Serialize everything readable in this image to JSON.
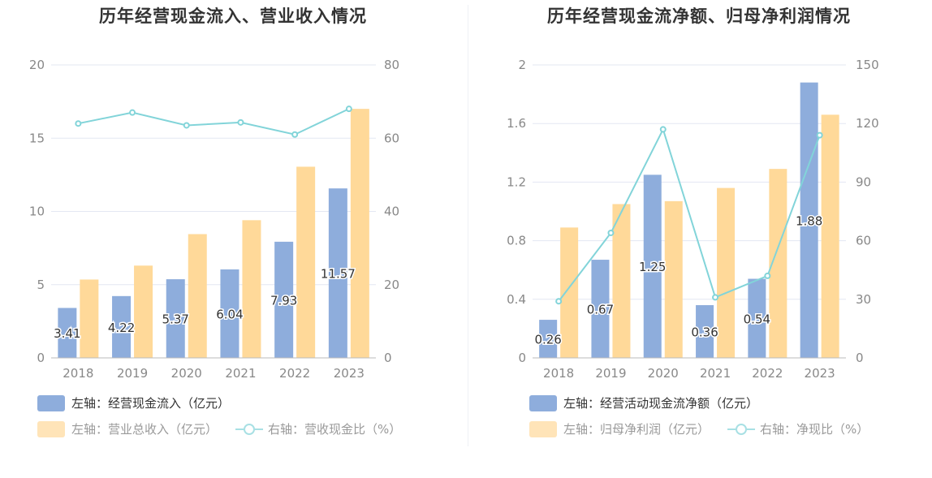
{
  "colors": {
    "bar_primary": "#8eaddc",
    "bar_secondary": "#ffd999",
    "line": "#82d4d9",
    "grid": "#e3e7f2",
    "axis": "#bbbbbb"
  },
  "chart_data": [
    {
      "type": "bar",
      "title": "历年经营现金流入、营业收入情况",
      "categories": [
        "2018",
        "2019",
        "2020",
        "2021",
        "2022",
        "2023"
      ],
      "ylim_left": [
        0,
        20
      ],
      "yticks_left": [
        "0",
        "5",
        "10",
        "15",
        "20"
      ],
      "ylim_right": [
        0,
        80
      ],
      "yticks_right": [
        "0",
        "20",
        "40",
        "60",
        "80"
      ],
      "series": [
        {
          "name": "左轴：经营现金流入（亿元）",
          "axis": "left",
          "kind": "bar",
          "values": [
            3.41,
            4.22,
            5.37,
            6.04,
            7.93,
            11.57
          ],
          "labels": [
            "3.41",
            "4.22",
            "5.37",
            "6.04",
            "7.93",
            "11.57"
          ]
        },
        {
          "name": "左轴：营业总收入（亿元）",
          "axis": "left",
          "kind": "bar",
          "values": [
            5.35,
            6.3,
            8.45,
            9.4,
            13.05,
            17.0
          ]
        },
        {
          "name": "右轴：营收现金比（%）",
          "axis": "right",
          "kind": "line",
          "values": [
            64.0,
            67.0,
            63.5,
            64.3,
            61.0,
            68.0
          ]
        }
      ],
      "grid": true,
      "legend_position": "bottom"
    },
    {
      "type": "bar",
      "title": "历年经营现金流净额、归母净利润情况",
      "categories": [
        "2018",
        "2019",
        "2020",
        "2021",
        "2022",
        "2023"
      ],
      "ylim_left": [
        0,
        2
      ],
      "yticks_left": [
        "0",
        "0.4",
        "0.8",
        "1.2",
        "1.6",
        "2"
      ],
      "ylim_right": [
        0,
        150
      ],
      "yticks_right": [
        "0",
        "30",
        "60",
        "90",
        "120",
        "150"
      ],
      "series": [
        {
          "name": "左轴：经营活动现金流净额（亿元）",
          "axis": "left",
          "kind": "bar",
          "values": [
            0.26,
            0.67,
            1.25,
            0.36,
            0.54,
            1.88
          ],
          "labels": [
            "0.26",
            "0.67",
            "1.25",
            "0.36",
            "0.54",
            "1.88"
          ]
        },
        {
          "name": "左轴：归母净利润（亿元）",
          "axis": "left",
          "kind": "bar",
          "values": [
            0.89,
            1.05,
            1.07,
            1.16,
            1.29,
            1.66
          ]
        },
        {
          "name": "右轴：净现比（%）",
          "axis": "right",
          "kind": "line",
          "values": [
            29.0,
            64.0,
            117.0,
            31.0,
            42.0,
            114.0
          ]
        }
      ],
      "grid": true,
      "legend_position": "bottom"
    }
  ]
}
